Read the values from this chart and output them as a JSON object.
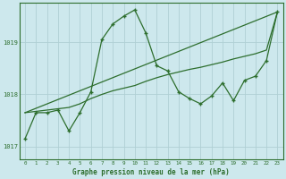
{
  "title": "Graphe pression niveau de la mer (hPa)",
  "background_color": "#cde8ed",
  "line_color": "#2d6e2d",
  "grid_color": "#b0d0d4",
  "xlim": [
    -0.5,
    23.5
  ],
  "ylim": [
    1016.75,
    1019.75
  ],
  "yticks": [
    1017,
    1018,
    1019
  ],
  "xticks": [
    0,
    1,
    2,
    3,
    4,
    5,
    6,
    7,
    8,
    9,
    10,
    11,
    12,
    13,
    14,
    15,
    16,
    17,
    18,
    19,
    20,
    21,
    22,
    23
  ],
  "series1_x": [
    0,
    1,
    2,
    3,
    4,
    5,
    6,
    7,
    8,
    9,
    10,
    11,
    12,
    13,
    14,
    15,
    16,
    17,
    18,
    19,
    20,
    21,
    22,
    23
  ],
  "series1_y": [
    1017.15,
    1017.65,
    1017.65,
    1017.7,
    1017.3,
    1017.65,
    1018.05,
    1019.05,
    1019.35,
    1019.5,
    1019.62,
    1019.18,
    1018.55,
    1018.45,
    1018.05,
    1017.92,
    1017.82,
    1017.97,
    1018.22,
    1017.88,
    1018.27,
    1018.35,
    1018.65,
    1019.58
  ],
  "series2_x": [
    0,
    23
  ],
  "series2_y": [
    1017.65,
    1019.58
  ],
  "series3_x": [
    0,
    4,
    5,
    6,
    7,
    8,
    9,
    10,
    11,
    12,
    13,
    14,
    15,
    16,
    17,
    18,
    19,
    20,
    21,
    22,
    23
  ],
  "series3_y": [
    1017.65,
    1017.75,
    1017.82,
    1017.92,
    1018.0,
    1018.07,
    1018.12,
    1018.17,
    1018.25,
    1018.32,
    1018.38,
    1018.43,
    1018.48,
    1018.52,
    1018.57,
    1018.62,
    1018.68,
    1018.73,
    1018.78,
    1018.85,
    1019.58
  ]
}
